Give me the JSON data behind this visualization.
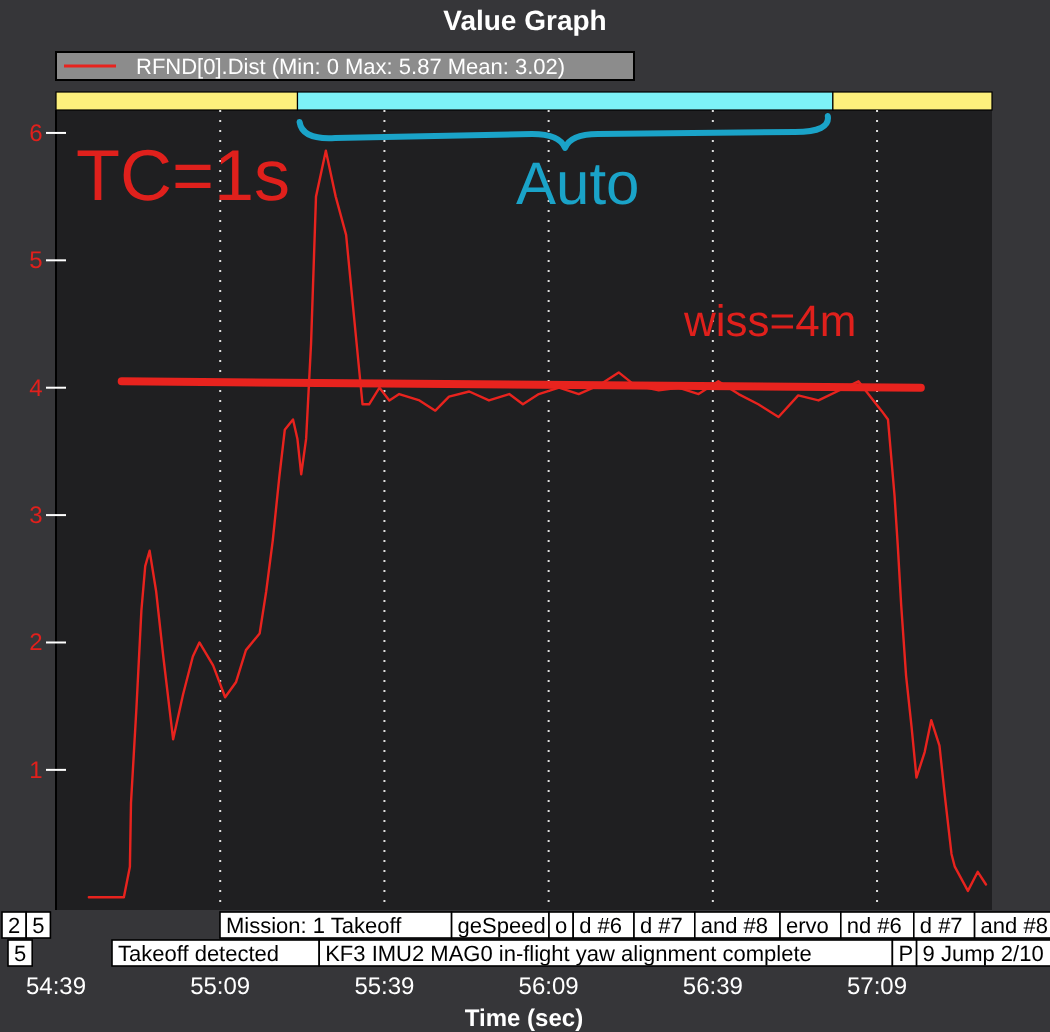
{
  "chart_data": {
    "type": "line",
    "title": "Value Graph",
    "xlabel": "Time (sec)",
    "xlim": [
      3279,
      3450
    ],
    "ylim": [
      -0.1,
      6.18
    ],
    "xticks": [
      {
        "value": 3279,
        "label": "54:39"
      },
      {
        "value": 3309,
        "label": "55:09"
      },
      {
        "value": 3339,
        "label": "55:39"
      },
      {
        "value": 3369,
        "label": "56:09"
      },
      {
        "value": 3399,
        "label": "56:39"
      },
      {
        "value": 3429,
        "label": "57:09"
      }
    ],
    "yticks": [
      1,
      2,
      3,
      4,
      5,
      6
    ],
    "grid": "x",
    "legend": "top left",
    "line_style": "solid",
    "marker": "none",
    "series": [
      {
        "name": "RFND[0].Dist  (Min: 0 Max: 5.87 Mean: 3.02)",
        "color": "#e8231e",
        "x": [
          3285,
          3291.4,
          3292.5,
          3292.7,
          3293.7,
          3294.6,
          3295.3,
          3296.1,
          3297.3,
          3298.6,
          3300.4,
          3302.2,
          3304,
          3305.2,
          3307.7,
          3309.9,
          3311.9,
          3313.7,
          3316.2,
          3317.4,
          3318.6,
          3319.8,
          3320.8,
          3322.3,
          3323.1,
          3323.8,
          3324.7,
          3325.6,
          3326.5,
          3328.3,
          3330.1,
          3332,
          3333.8,
          3335,
          3336.2,
          3338.1,
          3339.9,
          3341.7,
          3345.4,
          3348.3,
          3350.8,
          3354.5,
          3358.1,
          3361.8,
          3364.3,
          3367.2,
          3370.9,
          3374.5,
          3378.2,
          3381.8,
          3384.7,
          3389.1,
          3392.7,
          3396.4,
          3400,
          3403.7,
          3407.3,
          3411,
          3414.6,
          3418.3,
          3423.1,
          3425.6,
          3427.4,
          3429.8,
          3431,
          3432.2,
          3432.8,
          3433.4,
          3434.3,
          3435.3,
          3436.2,
          3437.7,
          3438.9,
          3440.4,
          3441.4,
          3442.6,
          3443.2,
          3445.6,
          3447.4,
          3448.9
        ],
        "values": [
          0,
          0,
          0.24,
          0.74,
          1.49,
          2.25,
          2.6,
          2.72,
          2.4,
          1.89,
          1.24,
          1.59,
          1.89,
          2.0,
          1.82,
          1.57,
          1.69,
          1.94,
          2.07,
          2.4,
          2.8,
          3.3,
          3.67,
          3.75,
          3.6,
          3.32,
          3.6,
          4.35,
          5.5,
          5.86,
          5.5,
          5.2,
          4.4,
          3.87,
          3.87,
          4.0,
          3.9,
          3.95,
          3.9,
          3.82,
          3.93,
          3.97,
          3.9,
          3.95,
          3.87,
          3.95,
          4.0,
          3.95,
          4.02,
          4.12,
          4.02,
          3.98,
          4.0,
          3.95,
          4.05,
          3.95,
          3.87,
          3.77,
          3.94,
          3.9,
          4.0,
          4.05,
          3.95,
          3.82,
          3.75,
          3.15,
          2.75,
          2.3,
          1.74,
          1.34,
          0.94,
          1.14,
          1.39,
          1.19,
          0.79,
          0.34,
          0.24,
          0.05,
          0.2,
          0.1
        ]
      },
      {
        "color": "#e8231e",
        "x": [
          3291,
          3437
        ],
        "values": [
          4.05,
          4.0
        ]
      }
    ],
    "annotations": [
      "TC=1s",
      "Auto",
      "wiss=4m",
      "2",
      "5",
      "Mission: 1 Takeoff",
      "geSpeed",
      "o",
      "d #6",
      "d #7",
      "and #8",
      "ervo",
      "nd #6",
      "d #7",
      "and #8",
      "5",
      "Takeoff detected",
      "KF3 IMU2 MAG0 in-flight yaw alignment complete",
      "P",
      "9 Jump 2/10"
    ]
  }
}
